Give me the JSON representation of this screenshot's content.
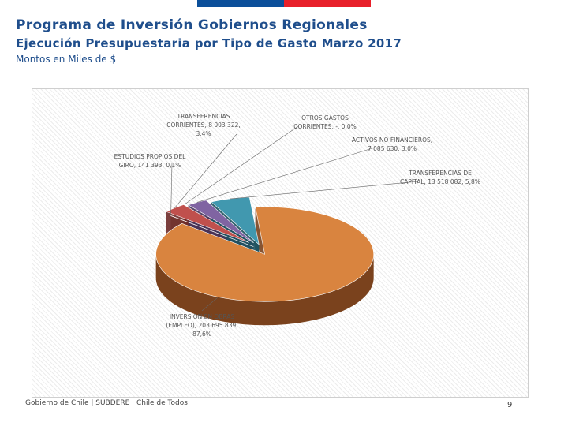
{
  "page": {
    "title": "Programa de Inversión Gobiernos Regionales",
    "subtitle": "Ejecución Presupuestaria por Tipo de Gasto Marzo 2017",
    "units": "Montos en Miles de $",
    "footer": "Gobierno de Chile | SUBDERE | Chile de Todos",
    "page_number": "9"
  },
  "colors": {
    "brand_blue": "#1f4e8c",
    "flag_blue": "#0b4f9a",
    "flag_red": "#e8202a"
  },
  "chart_data": {
    "type": "pie",
    "style": "3d-exploded",
    "title": "",
    "slices": [
      {
        "label_lines": [
          "INVERSION EN OBRAS",
          "(EMPLEO), 203 695 839,",
          "87,6%"
        ],
        "value": 203695839,
        "percent": 87.6,
        "color": "#d9843f",
        "side": "#7a421d"
      },
      {
        "label_lines": [
          "ESTUDIOS PROPIOS DEL",
          "GIRO, 141 393, 0,1%"
        ],
        "value": 141393,
        "percent": 0.1,
        "color": "#f2d7b8",
        "side": "#9c8466"
      },
      {
        "label_lines": [
          "TRANSFERENCIAS",
          "CORRIENTES, 8 003 322,",
          "3,4%"
        ],
        "value": 8003322,
        "percent": 3.4,
        "color": "#c0504d",
        "side": "#6e2b29"
      },
      {
        "label_lines": [
          "OTROS GASTOS",
          "CORRIENTES, -, 0,0%"
        ],
        "value": 0,
        "percent": 0.0,
        "color": "#9bbb59",
        "side": "#5a6e33"
      },
      {
        "label_lines": [
          "ACTIVOS NO FINANCIEROS,",
          "7 085 630, 3,0%"
        ],
        "value": 7085630,
        "percent": 3.0,
        "color": "#8064a2",
        "side": "#45335a"
      },
      {
        "label_lines": [
          "TRANSFERENCIAS DE",
          "CAPITAL, 13 518 082, 5,8%"
        ],
        "value": 13518082,
        "percent": 5.8,
        "color": "#4198af",
        "side": "#1f5361"
      }
    ]
  }
}
